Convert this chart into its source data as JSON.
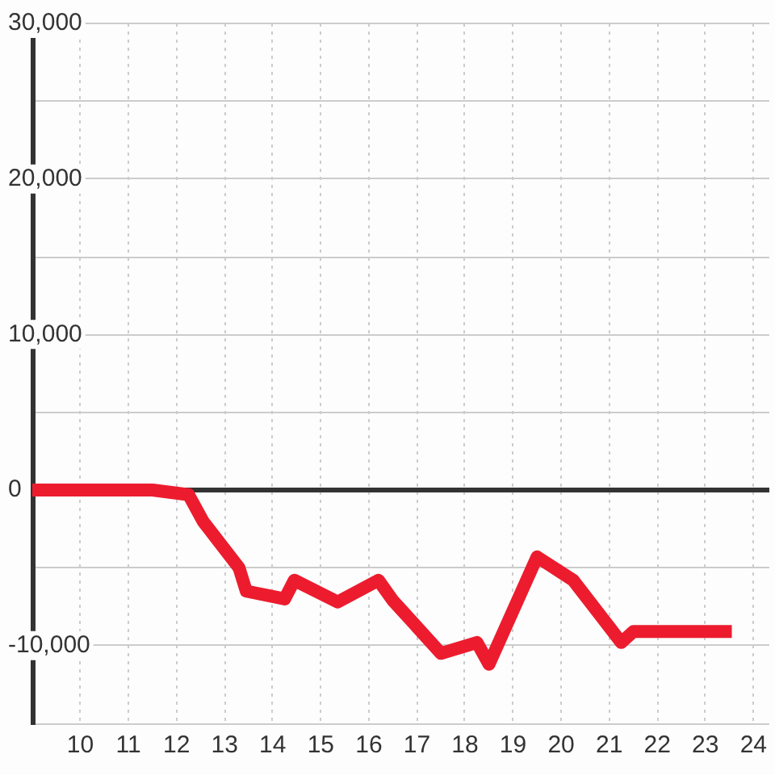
{
  "chart_data": {
    "type": "line",
    "x": [
      9,
      11.5,
      12.25,
      12.55,
      13.3,
      13.45,
      14.25,
      14.45,
      15.35,
      16.2,
      16.5,
      17.5,
      18.25,
      18.5,
      19.5,
      20.25,
      21.25,
      21.5,
      23.55
    ],
    "series": [
      {
        "color": "#ec1c2e",
        "values": [
          0,
          0,
          -300,
          -2000,
          -5000,
          -6500,
          -7000,
          -5800,
          -7200,
          -5800,
          -7100,
          -10500,
          -9800,
          -11200,
          -4300,
          -5800,
          -9800,
          -9100,
          -9100
        ]
      }
    ],
    "xlim": [
      9,
      24.33
    ],
    "xticks": [
      10,
      11,
      12,
      13,
      14,
      15,
      16,
      17,
      18,
      19,
      20,
      21,
      22,
      23,
      24
    ],
    "ylim": [
      -15000,
      30000
    ],
    "yticks": [
      {
        "value": -15000,
        "label": null
      },
      {
        "value": -10000,
        "label": "-10,000"
      },
      {
        "value": -5000,
        "label": null
      },
      {
        "value": 0,
        "label": "0"
      },
      {
        "value": 5000,
        "label": null
      },
      {
        "value": 10000,
        "label": "10,000"
      },
      {
        "value": 15000,
        "label": null
      },
      {
        "value": 20000,
        "label": "20,000"
      },
      {
        "value": 25000,
        "label": null
      },
      {
        "value": 30000,
        "label": "30,000"
      }
    ],
    "ref_lines": [
      {
        "axis": "y",
        "value": 0,
        "color": "#333333"
      }
    ],
    "grid": true,
    "legend": false,
    "marker": "none",
    "line_style": "solid"
  }
}
